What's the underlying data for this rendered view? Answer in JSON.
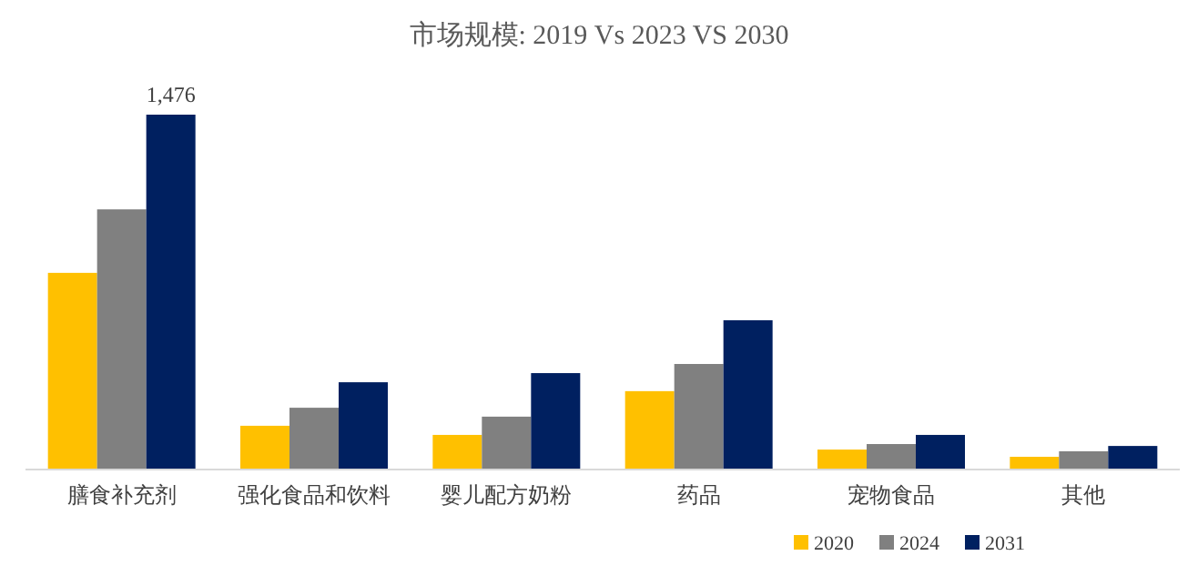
{
  "chart_data": {
    "type": "bar",
    "title": "市场规模: 2019 Vs 2023 VS 2030",
    "categories": [
      "膳食补充剂",
      "强化食品和饮料",
      "婴儿配方奶粉",
      "药品",
      "宠物食品",
      "其他"
    ],
    "legend": "bottom right",
    "series": [
      {
        "name": "2020",
        "color": "#ffc000",
        "values": [
          818,
          182,
          144,
          326,
          83,
          53
        ]
      },
      {
        "name": "2024",
        "color": "#808080",
        "values": [
          1082,
          257,
          220,
          439,
          106,
          76
        ]
      },
      {
        "name": "2031",
        "color": "#002060",
        "values": [
          1476,
          363,
          401,
          621,
          144,
          98
        ],
        "value_labels": [
          "1,476",
          null,
          null,
          null,
          null,
          null
        ]
      }
    ]
  }
}
